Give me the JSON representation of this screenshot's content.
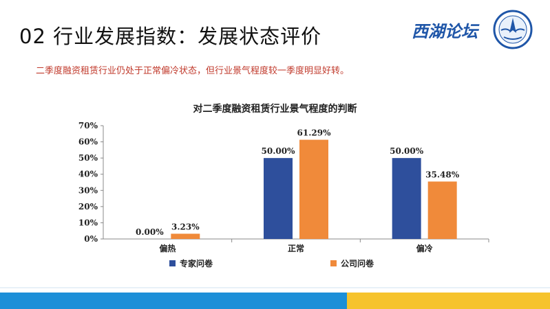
{
  "slide": {
    "title": "02 行业发展指数：发展状态评价",
    "subtitle": "二季度融资租赁行业仍处于正常偏冷状态，但行业景气程度较一季度明显好转。",
    "logo_text": "西湖论坛",
    "colors": {
      "title": "#111111",
      "subtitle": "#c0392b",
      "logo": "#1f56a8",
      "footer_left": "#1c8fd8",
      "footer_right": "#f6c32c"
    }
  },
  "chart_data": {
    "type": "bar",
    "title": "对二季度融资租赁行业景气程度的判断",
    "categories": [
      "偏热",
      "正常",
      "偏冷"
    ],
    "series": [
      {
        "name": "专家问卷",
        "values": [
          0.0,
          50.0,
          50.0
        ],
        "labels": [
          "0.00%",
          "50.00%",
          "50.00%"
        ],
        "color": "#2e4f9c"
      },
      {
        "name": "公司问卷",
        "values": [
          3.23,
          61.29,
          35.48
        ],
        "labels": [
          "3.23%",
          "61.29%",
          "35.48%"
        ],
        "color": "#f08a3a"
      }
    ],
    "y_ticks": [
      "0%",
      "10%",
      "20%",
      "30%",
      "40%",
      "50%",
      "60%",
      "70%"
    ],
    "ylim": [
      0,
      70
    ],
    "grid": false,
    "legend_position": "bottom"
  }
}
